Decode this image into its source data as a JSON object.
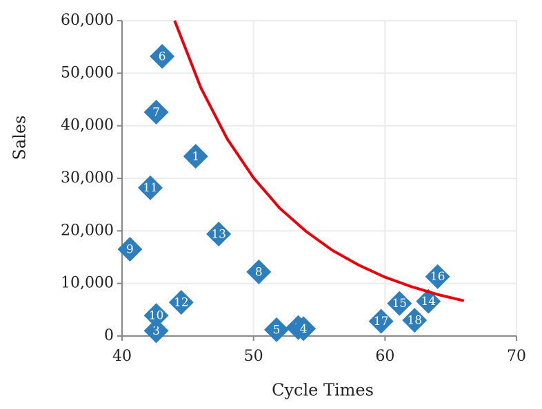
{
  "chart_data": {
    "type": "scatter",
    "x_label": "Cycle Times",
    "y_label": "Sales",
    "xlim": [
      40,
      70
    ],
    "xticks": [
      40,
      50,
      60,
      70
    ],
    "ylim": [
      0,
      60000
    ],
    "yticks": [
      0,
      {
        "value": 10000,
        "label": "10,000"
      },
      {
        "value": 20000,
        "label": "20,000"
      },
      {
        "value": 30000,
        "label": "30,000"
      },
      {
        "value": 40000,
        "label": "40,000"
      },
      {
        "value": 50000,
        "label": "50,000"
      },
      {
        "value": 60000,
        "label": "60,000"
      }
    ],
    "grid": true,
    "series": [
      {
        "type": "scatter",
        "color": "#2e7ebd",
        "labels": [
          "1",
          "2",
          "3",
          "4",
          "5",
          "6",
          "7",
          "8",
          "9",
          "10",
          "11",
          "12",
          "13",
          "14",
          "15",
          "16",
          "17",
          "18"
        ],
        "x": [
          45.6,
          53.4,
          42.6,
          53.8,
          51.75,
          43.05,
          42.6,
          50.4,
          40.6,
          42.6,
          42.15,
          44.5,
          47.35,
          63.3,
          61.1,
          64.0,
          59.7,
          62.25
        ],
        "values": [
          34200,
          1600,
          1000,
          1400,
          1200,
          53200,
          42600,
          12200,
          16500,
          3900,
          28200,
          6400,
          19400,
          6600,
          6200,
          11300,
          2800,
          3000
        ]
      },
      {
        "type": "line",
        "color": "#e8000b",
        "x": [
          44,
          46,
          48,
          50,
          52,
          54,
          56,
          58,
          60,
          62,
          64,
          66
        ],
        "values": [
          60000,
          47200,
          37500,
          30100,
          24300,
          19900,
          16300,
          13500,
          11200,
          9400,
          7900,
          6700
        ]
      }
    ]
  }
}
